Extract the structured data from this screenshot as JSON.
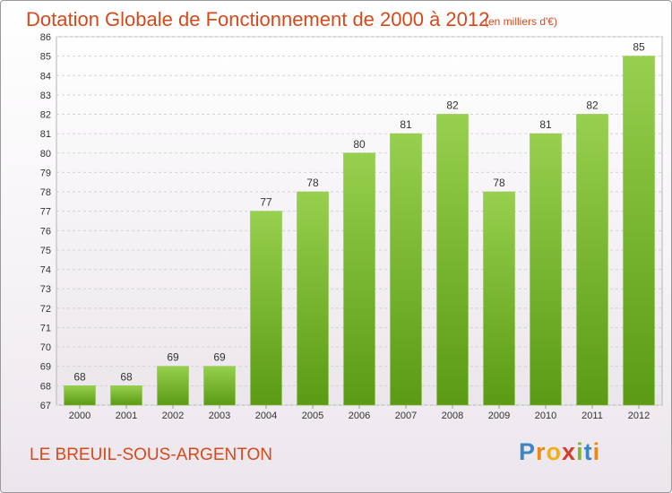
{
  "header": {
    "title": "Dotation Globale de Fonctionnement de 2000 à 2012",
    "subtitle": "(en milliers d'€)"
  },
  "footer": {
    "commune": "LE BREUIL-SOUS-ARGENTON",
    "logo": [
      "P",
      "r",
      "o",
      "x",
      "i",
      "t",
      "i"
    ]
  },
  "colors": {
    "title": "#d6491c",
    "bar_top": "#97d04e",
    "bar_bottom": "#5a9a14",
    "logo": [
      "#3c86c6",
      "#e8891a",
      "#f0b01c",
      "#d63c2a",
      "#7fb82e",
      "#3c86c6",
      "#e8891a"
    ]
  },
  "chart_data": {
    "type": "bar",
    "title": "Dotation Globale de Fonctionnement de 2000 à 2012",
    "unit": "(en milliers d'€)",
    "xlabel": "",
    "ylabel": "",
    "categories": [
      "2000",
      "2001",
      "2002",
      "2003",
      "2004",
      "2005",
      "2006",
      "2007",
      "2008",
      "2009",
      "2010",
      "2011",
      "2012"
    ],
    "values": [
      68,
      68,
      69,
      69,
      77,
      78,
      80,
      81,
      82,
      78,
      81,
      82,
      85
    ],
    "ylim": [
      67,
      86
    ],
    "yticks": [
      67,
      68,
      69,
      70,
      71,
      72,
      73,
      74,
      75,
      76,
      77,
      78,
      79,
      80,
      81,
      82,
      83,
      84,
      85,
      86
    ],
    "grid": true,
    "legend": "none"
  }
}
